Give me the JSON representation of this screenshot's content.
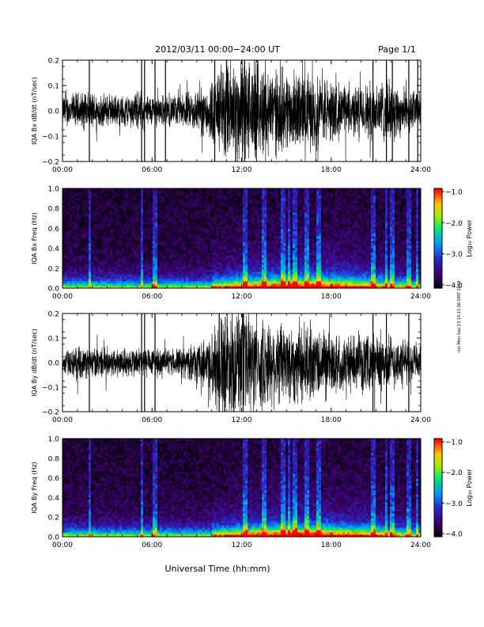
{
  "header": {
    "title": "2012/03/11   00:00−24:00 UT",
    "page": "Page 1/1"
  },
  "side_note": "run Mon Sep 23 14:11:06 GMT 2019",
  "xlabel": "Universal Time (hh:mm)",
  "chart_data": [
    {
      "type": "line",
      "ylabel": "IQA Bx dB/dt (nT/sec)",
      "xlim": [
        0,
        24
      ],
      "ylim": [
        -0.2,
        0.2
      ],
      "yticks": [
        "0.2",
        "0.1",
        "0.0",
        "−0.1",
        "−0.2"
      ],
      "xticks": [
        "00:00",
        "06:00",
        "12:00",
        "18:00",
        "24:00"
      ],
      "envelope": [
        {
          "x": 0,
          "a": 0.05
        },
        {
          "x": 1,
          "a": 0.06
        },
        {
          "x": 2,
          "a": 0.06
        },
        {
          "x": 3,
          "a": 0.05
        },
        {
          "x": 4,
          "a": 0.05
        },
        {
          "x": 5,
          "a": 0.06
        },
        {
          "x": 6,
          "a": 0.05
        },
        {
          "x": 7,
          "a": 0.05
        },
        {
          "x": 8,
          "a": 0.05
        },
        {
          "x": 9,
          "a": 0.07
        },
        {
          "x": 10,
          "a": 0.1
        },
        {
          "x": 10.5,
          "a": 0.14
        },
        {
          "x": 11,
          "a": 0.18
        },
        {
          "x": 12,
          "a": 0.17
        },
        {
          "x": 13,
          "a": 0.16
        },
        {
          "x": 14,
          "a": 0.14
        },
        {
          "x": 15,
          "a": 0.13
        },
        {
          "x": 16,
          "a": 0.12
        },
        {
          "x": 17,
          "a": 0.12
        },
        {
          "x": 18,
          "a": 0.1
        },
        {
          "x": 19,
          "a": 0.08
        },
        {
          "x": 20,
          "a": 0.08
        },
        {
          "x": 21,
          "a": 0.1
        },
        {
          "x": 22,
          "a": 0.1
        },
        {
          "x": 23,
          "a": 0.07
        },
        {
          "x": 24,
          "a": 0.06
        }
      ],
      "spikes": [
        1.8,
        5.3,
        5.5,
        6.2,
        6.9,
        10.2,
        12.2,
        20.8,
        21.7,
        22.1,
        23.2,
        23.8
      ]
    },
    {
      "type": "heatmap",
      "ylabel": "IQA Bx Freq (Hz)",
      "xlim": [
        0,
        24
      ],
      "ylim": [
        0.0,
        1.0
      ],
      "yticks": [
        "1.0",
        "0.8",
        "0.6",
        "0.4",
        "0.2",
        "0.0"
      ],
      "xticks": [
        "00:00",
        "06:00",
        "12:00",
        "18:00",
        "24:00"
      ],
      "colorbar": {
        "label": "Log₁₀ Power",
        "ticks": [
          "−1.0",
          "−2.0",
          "−3.0",
          "−4.0"
        ],
        "range": [
          -4.0,
          -1.0
        ]
      },
      "vertical_streaks": [
        1.8,
        5.3,
        6.2,
        12.2,
        13.5,
        14.8,
        15.2,
        15.6,
        16.4,
        17.2,
        20.8,
        21.7,
        22.1,
        23.2,
        23.8
      ]
    },
    {
      "type": "line",
      "ylabel": "IQA By dB/dt (nT/sec)",
      "xlim": [
        0,
        24
      ],
      "ylim": [
        -0.2,
        0.2
      ],
      "yticks": [
        "0.2",
        "0.1",
        "0.0",
        "−0.1",
        "−0.2"
      ],
      "xticks": [
        "00:00",
        "06:00",
        "12:00",
        "18:00",
        "24:00"
      ],
      "envelope": [
        {
          "x": 0,
          "a": 0.04
        },
        {
          "x": 1,
          "a": 0.05
        },
        {
          "x": 2,
          "a": 0.05
        },
        {
          "x": 3,
          "a": 0.05
        },
        {
          "x": 4,
          "a": 0.05
        },
        {
          "x": 5,
          "a": 0.05
        },
        {
          "x": 6,
          "a": 0.05
        },
        {
          "x": 7,
          "a": 0.04
        },
        {
          "x": 8,
          "a": 0.05
        },
        {
          "x": 9,
          "a": 0.06
        },
        {
          "x": 10,
          "a": 0.1
        },
        {
          "x": 10.5,
          "a": 0.16
        },
        {
          "x": 11,
          "a": 0.19
        },
        {
          "x": 12,
          "a": 0.17
        },
        {
          "x": 13,
          "a": 0.15
        },
        {
          "x": 14,
          "a": 0.14
        },
        {
          "x": 15,
          "a": 0.14
        },
        {
          "x": 16,
          "a": 0.13
        },
        {
          "x": 17,
          "a": 0.12
        },
        {
          "x": 18,
          "a": 0.1
        },
        {
          "x": 19,
          "a": 0.09
        },
        {
          "x": 20,
          "a": 0.08
        },
        {
          "x": 21,
          "a": 0.1
        },
        {
          "x": 22,
          "a": 0.09
        },
        {
          "x": 23,
          "a": 0.07
        },
        {
          "x": 24,
          "a": 0.06
        }
      ],
      "spikes": [
        1.8,
        5.3,
        5.5,
        6.2,
        10.5,
        12.1,
        20.8,
        21.7,
        23.2
      ]
    },
    {
      "type": "heatmap",
      "ylabel": "IQA By Freq (Hz)",
      "xlim": [
        0,
        24
      ],
      "ylim": [
        0.0,
        1.0
      ],
      "yticks": [
        "1.0",
        "0.8",
        "0.6",
        "0.4",
        "0.2",
        "0.0"
      ],
      "xticks": [
        "00:00",
        "06:00",
        "12:00",
        "18:00",
        "24:00"
      ],
      "colorbar": {
        "label": "Log₁₀ Power",
        "ticks": [
          "−1.0",
          "−2.0",
          "−3.0",
          "−4.0"
        ],
        "range": [
          -4.0,
          -1.0
        ]
      },
      "vertical_streaks": [
        1.8,
        5.3,
        6.2,
        12.2,
        13.5,
        14.8,
        15.2,
        15.6,
        16.4,
        17.2,
        20.8,
        21.7,
        22.1,
        23.2,
        23.8
      ]
    }
  ]
}
